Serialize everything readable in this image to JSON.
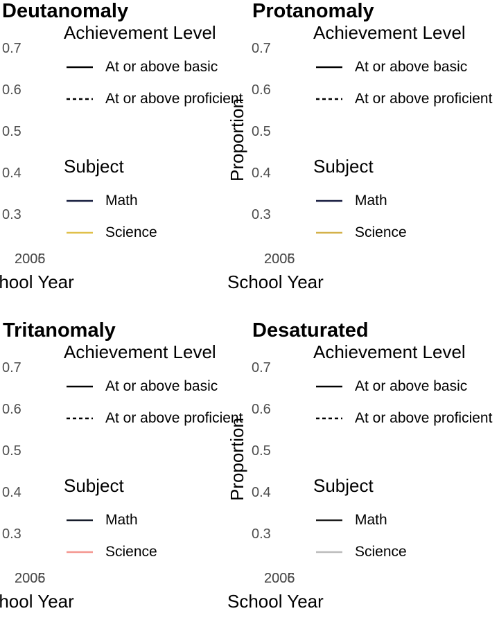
{
  "chart_data": [
    {
      "type": "line",
      "title": "Deutanomaly",
      "xlabel": "School Year",
      "ylabel": "",
      "x": [
        "2005",
        "2006"
      ],
      "x_tick_labels": [
        "2005",
        "2006"
      ],
      "y_tick_labels": [
        "0.7",
        "0.6",
        "0.5",
        "0.4",
        "0.3"
      ],
      "ylim": [
        0.25,
        0.75
      ],
      "series": [],
      "legend": {
        "placement": "right",
        "achievement": {
          "title": "Achievement Level",
          "items": [
            {
              "label": "At or above basic",
              "linestyle": "solid"
            },
            {
              "label": "At or above proficient",
              "linestyle": "dashed"
            }
          ]
        },
        "subject": {
          "title": "Subject",
          "items": [
            {
              "label": "Math",
              "color": "#141b3d"
            },
            {
              "label": "Science",
              "color": "#e0c04a"
            }
          ]
        }
      }
    },
    {
      "type": "line",
      "title": "Protanomaly",
      "xlabel": "School Year",
      "ylabel": "Proportion",
      "x": [
        "2005",
        "2006"
      ],
      "x_tick_labels": [
        "2005",
        "2006"
      ],
      "y_tick_labels": [
        "0.7",
        "0.6",
        "0.5",
        "0.4",
        "0.3"
      ],
      "ylim": [
        0.25,
        0.75
      ],
      "series": [],
      "legend": {
        "placement": "right",
        "achievement": {
          "title": "Achievement Level",
          "items": [
            {
              "label": "At or above basic",
              "linestyle": "solid"
            },
            {
              "label": "At or above proficient",
              "linestyle": "dashed"
            }
          ]
        },
        "subject": {
          "title": "Subject",
          "items": [
            {
              "label": "Math",
              "color": "#151a3e"
            },
            {
              "label": "Science",
              "color": "#d4b14a"
            }
          ]
        }
      }
    },
    {
      "type": "line",
      "title": "Tritanomaly",
      "xlabel": "School Year",
      "ylabel": "",
      "x": [
        "2005",
        "2006"
      ],
      "x_tick_labels": [
        "2005",
        "2006"
      ],
      "y_tick_labels": [
        "0.7",
        "0.6",
        "0.5",
        "0.4",
        "0.3"
      ],
      "ylim": [
        0.25,
        0.75
      ],
      "series": [],
      "legend": {
        "placement": "right",
        "achievement": {
          "title": "Achievement Level",
          "items": [
            {
              "label": "At or above basic",
              "linestyle": "solid"
            },
            {
              "label": "At or above proficient",
              "linestyle": "dashed"
            }
          ]
        },
        "subject": {
          "title": "Subject",
          "items": [
            {
              "label": "Math",
              "color": "#161c2a"
            },
            {
              "label": "Science",
              "color": "#f4968f"
            }
          ]
        }
      }
    },
    {
      "type": "line",
      "title": "Desaturated",
      "xlabel": "School Year",
      "ylabel": "Proportion",
      "x": [
        "2005",
        "2006"
      ],
      "x_tick_labels": [
        "2005",
        "2006"
      ],
      "y_tick_labels": [
        "0.7",
        "0.6",
        "0.5",
        "0.4",
        "0.3"
      ],
      "ylim": [
        0.25,
        0.75
      ],
      "series": [],
      "legend": {
        "placement": "right",
        "achievement": {
          "title": "Achievement Level",
          "items": [
            {
              "label": "At or above basic",
              "linestyle": "solid"
            },
            {
              "label": "At or above proficient",
              "linestyle": "dashed"
            }
          ]
        },
        "subject": {
          "title": "Subject",
          "items": [
            {
              "label": "Math",
              "color": "#1c1c1c"
            },
            {
              "label": "Science",
              "color": "#bbbbbb"
            }
          ]
        }
      }
    }
  ]
}
